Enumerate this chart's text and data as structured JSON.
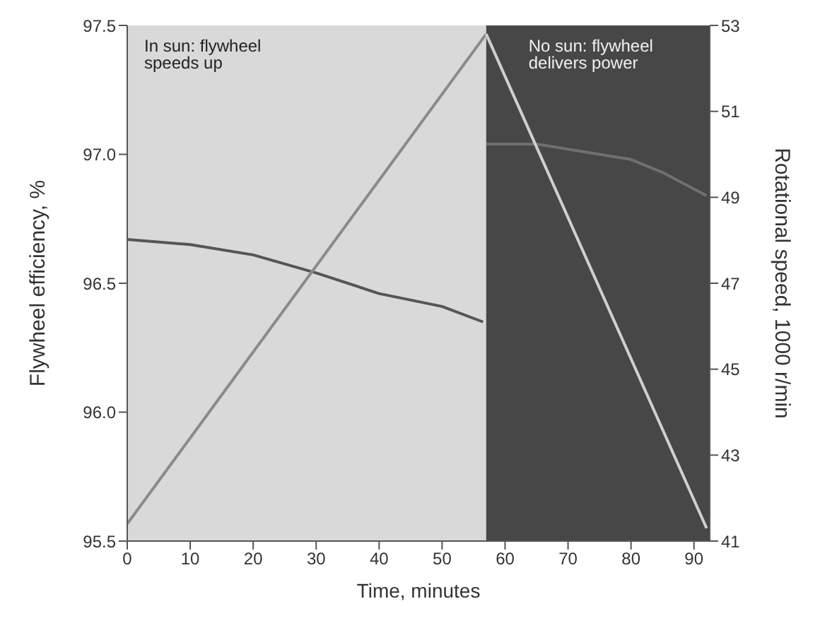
{
  "chart_data": {
    "type": "line",
    "xlabel": "Time, minutes",
    "ylabel": "Flywheel efficiency, %",
    "y2label": "Rotational speed, 1000 r/min",
    "xlim": [
      0,
      92.5
    ],
    "xticks": [
      0,
      10,
      20,
      30,
      40,
      50,
      60,
      70,
      80,
      90
    ],
    "ylim": [
      95.5,
      97.5
    ],
    "yticks": [
      {
        "value": 95.5,
        "label": "95.5"
      },
      {
        "value": 96,
        "label": "96.0"
      },
      {
        "value": 96.5,
        "label": "96.5"
      },
      {
        "value": 97,
        "label": "97.0"
      },
      {
        "value": 97.5,
        "label": "97.5"
      }
    ],
    "y2lim": [
      41,
      53
    ],
    "y2ticks": [
      41,
      43,
      45,
      47,
      49,
      51,
      53
    ],
    "marker": "none",
    "series": [
      {
        "color": "#555555",
        "x": [
          0,
          10,
          20,
          30,
          40,
          50,
          56.5
        ],
        "values": [
          96.67,
          96.65,
          96.61,
          96.54,
          96.46,
          96.41,
          96.35
        ]
      },
      {
        "color": "#707070",
        "x": [
          57,
          65,
          70,
          75,
          80,
          85,
          92
        ],
        "values": [
          97.04,
          97.04,
          97.02,
          97.0,
          96.98,
          96.93,
          96.84
        ]
      },
      {
        "color": "#8a8a8a",
        "axis": "y2",
        "x": [
          0,
          57
        ],
        "values": [
          41.4,
          52.8
        ]
      },
      {
        "color": "#d0d0d0",
        "axis": "y2",
        "x": [
          57,
          92
        ],
        "values": [
          52.8,
          41.3
        ]
      }
    ],
    "bands": [
      {
        "axis": "x",
        "from": 0,
        "to": 57,
        "label": "In sun: flywheel speeds up",
        "color": "#d9d9d9"
      },
      {
        "axis": "x",
        "from": 57,
        "to": 92.5,
        "label": "No sun: flywheel delivers power",
        "color": "#474747"
      }
    ]
  }
}
